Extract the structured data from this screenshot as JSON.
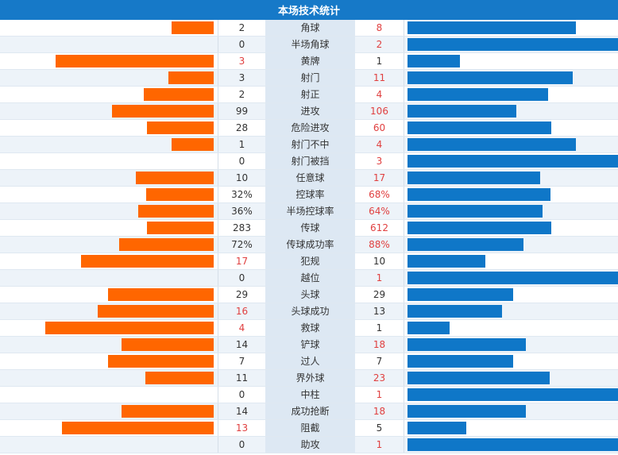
{
  "title": "本场技术统计",
  "colors": {
    "home": "#ff6600",
    "away": "#0f77c8",
    "header": "#1679c8",
    "highlight": "#e04040"
  },
  "chart_data": {
    "type": "bar",
    "title": "本场技术统计",
    "categories": [
      "角球",
      "半场角球",
      "黄牌",
      "射门",
      "射正",
      "进攻",
      "危险进攻",
      "射门不中",
      "射门被挡",
      "任意球",
      "控球率",
      "半场控球率",
      "传球",
      "传球成功率",
      "犯规",
      "越位",
      "头球",
      "头球成功",
      "救球",
      "铲球",
      "过人",
      "界外球",
      "中柱",
      "成功抢断",
      "阻截",
      "助攻"
    ],
    "home_labels": [
      "2",
      "0",
      "3",
      "3",
      "2",
      "99",
      "28",
      "1",
      "0",
      "10",
      "32%",
      "36%",
      "283",
      "72%",
      "17",
      "0",
      "29",
      "16",
      "4",
      "14",
      "7",
      "11",
      "0",
      "14",
      "13",
      "0"
    ],
    "away_labels": [
      "8",
      "2",
      "1",
      "11",
      "4",
      "106",
      "60",
      "4",
      "3",
      "17",
      "68%",
      "64%",
      "612",
      "88%",
      "10",
      "1",
      "29",
      "13",
      "1",
      "18",
      "7",
      "23",
      "1",
      "18",
      "5",
      "1"
    ],
    "series": [
      {
        "values": [
          2,
          0,
          3,
          3,
          2,
          99,
          28,
          1,
          0,
          10,
          32,
          36,
          283,
          72,
          17,
          0,
          29,
          16,
          4,
          14,
          7,
          11,
          0,
          14,
          13,
          0
        ]
      },
      {
        "values": [
          8,
          2,
          1,
          11,
          4,
          106,
          60,
          4,
          3,
          17,
          68,
          64,
          612,
          88,
          10,
          1,
          29,
          13,
          1,
          18,
          7,
          23,
          1,
          18,
          5,
          1
        ]
      }
    ]
  }
}
